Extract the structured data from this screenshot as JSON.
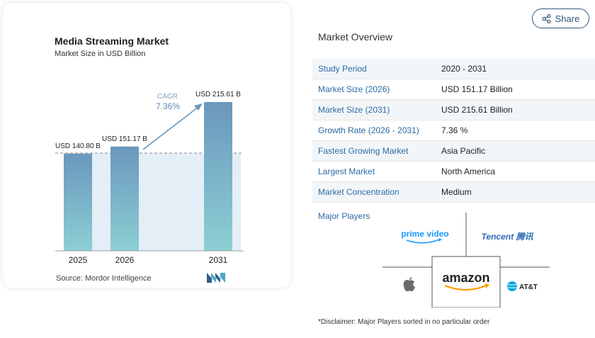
{
  "share": {
    "label": "Share",
    "icon": "share-icon"
  },
  "card": {
    "title": "Media Streaming Market",
    "subtitle": "Market Size in USD Billion",
    "source": "Source: Mordor Intelligence"
  },
  "chart_data": {
    "type": "bar",
    "categories": [
      "2025",
      "2026",
      "2031"
    ],
    "values": [
      140.8,
      151.17,
      215.61
    ],
    "value_labels": [
      "USD 140.80 B",
      "USD 151.17 B",
      "USD 215.61 B"
    ],
    "cagr_label": "CAGR",
    "cagr_value": "7.36%",
    "colors": {
      "bar_top": "#6a97bd",
      "bar_bottom": "#8ccfd3",
      "shade": "#e4eef6",
      "arrow": "#6a97bd"
    }
  },
  "overview": {
    "title": "Market Overview",
    "rows": [
      {
        "label": "Study Period",
        "value": "2020 - 2031"
      },
      {
        "label": "Market Size (2026)",
        "value": "USD 151.17 Billion"
      },
      {
        "label": "Market Size (2031)",
        "value": "USD 215.61 Billion"
      },
      {
        "label": "Growth Rate (2026 - 2031)",
        "value": "7.36 %"
      },
      {
        "label": "Fastest Growing Market",
        "value": "Asia Pacific"
      },
      {
        "label": "Largest Market",
        "value": "North America"
      },
      {
        "label": "Market Concentration",
        "value": "Medium"
      }
    ]
  },
  "players": {
    "title": "Major Players",
    "logos": [
      "prime video",
      "Tencent 腾讯",
      "amazon",
      "AT&T"
    ]
  },
  "disclaimer": "*Disclaimer: Major Players sorted in no particular order"
}
